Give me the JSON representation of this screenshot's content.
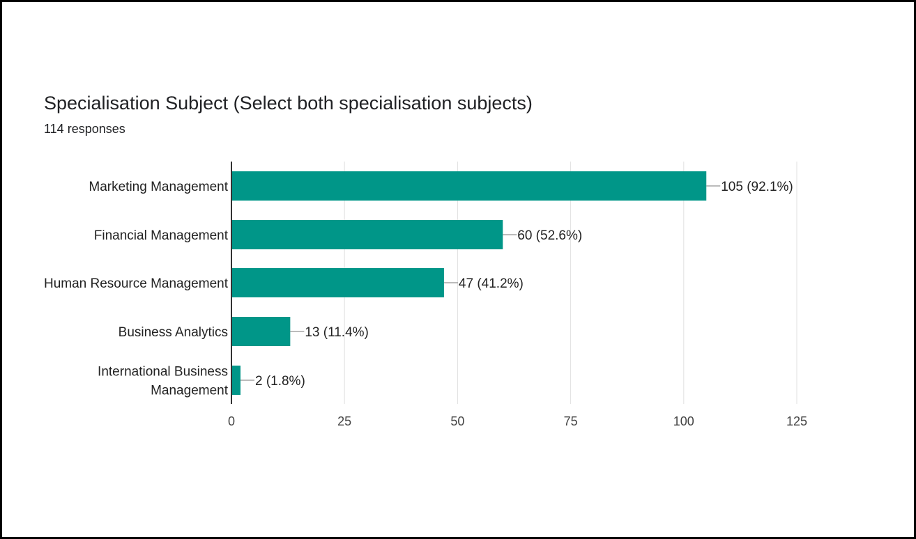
{
  "header": {
    "title": "Specialisation Subject (Select both specialisation subjects)",
    "responses": "114 responses"
  },
  "colors": {
    "bar": "#009688",
    "grid": "#e0e0e0",
    "axis": "#333333"
  },
  "chart_data": {
    "type": "bar",
    "orientation": "horizontal",
    "title": "Specialisation Subject (Select both specialisation subjects)",
    "subtitle": "114 responses",
    "categories": [
      [
        "Marketing Management"
      ],
      [
        "Financial Management"
      ],
      [
        "Human Resource Management"
      ],
      [
        "Business Analytics"
      ],
      [
        "International Business",
        "Management"
      ]
    ],
    "values": [
      105,
      60,
      47,
      13,
      2
    ],
    "value_labels": [
      "105 (92.1%)",
      "60 (52.6%)",
      "47 (41.2%)",
      "13 (11.4%)",
      "2 (1.8%)"
    ],
    "xlim": [
      0,
      125
    ],
    "xticks": [
      0,
      25,
      50,
      75,
      100,
      125
    ],
    "grid": true,
    "legend": "none"
  }
}
